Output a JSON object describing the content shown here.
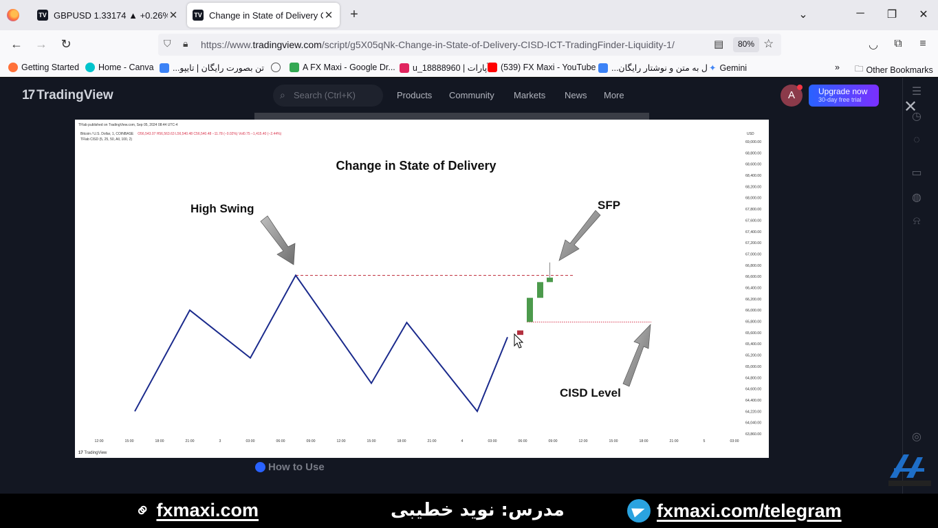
{
  "browser": {
    "tabs": [
      {
        "title": "GBPUSD 1.33174 ▲ +0.26% Uni",
        "active": false
      },
      {
        "title": "Change in State of Delivery CISD",
        "active": true
      }
    ],
    "url_prefix": "https://www.",
    "url_domain": "tradingview.com",
    "url_path": "/script/g5X05qNk-Change-in-State-of-Delivery-CISD-ICT-TradingFinder-Liquidity-1/",
    "zoom": "80%",
    "bookmarks": [
      {
        "label": "Getting Started",
        "color": "#ff7139"
      },
      {
        "label": "Home - Canva",
        "color": "#00c4cc"
      },
      {
        "label": "...تن بصورت رایگان | تایپو",
        "color": "#3b82f6"
      },
      {
        "label": "",
        "color": "#555555"
      },
      {
        "label": "A FX Maxi - Google Dr...",
        "color": "#34a853"
      },
      {
        "label": "u_18888960 | آپارات",
        "color": "#e0245e"
      },
      {
        "label": "(539) FX Maxi - YouTube",
        "color": "#ff0000"
      },
      {
        "label": "...ل به متن و نوشتار رایگان",
        "color": "#3b82f6"
      },
      {
        "label": "Gemini",
        "color": "#4285f4"
      }
    ],
    "other_bookmarks": "Other Bookmarks"
  },
  "tradingview": {
    "logo_text": "TradingView",
    "search_placeholder": "Search (Ctrl+K)",
    "nav": [
      "Products",
      "Community",
      "Markets",
      "News",
      "More"
    ],
    "avatar_letter": "A",
    "upgrade_line1": "Upgrade now",
    "upgrade_line2": "30-day free trial",
    "how_to_use": "How to Use"
  },
  "chart": {
    "published": "TFlab published on TradingView.com, Sep 05, 2024 08:44 UTC-4",
    "symbol_line": "Bitcoin / U.S. Dollar, 1, COINBASE",
    "ohlc": "O56,543.07  H56,563.63  L56,540.48  C56,540.48  −11.78 (−0.02%)  Vol0.75  −1,415.40 (−2.44%)",
    "indicator_line": "TFlab CISD (5, 25, 50, All, 100, 2)",
    "currency": "USD",
    "title": "Change in State of Delivery",
    "annotations": {
      "high_swing": "High Swing",
      "sfp": "SFP",
      "cisd_level": "CISD Level"
    },
    "footer_logo": "TradingView"
  },
  "chart_data": {
    "type": "line",
    "title": "Change in State of Delivery",
    "y_ticks": [
      "69,000.00",
      "68,800.00",
      "68,600.00",
      "68,400.00",
      "68,200.00",
      "68,000.00",
      "67,800.00",
      "67,600.00",
      "67,400.00",
      "67,200.00",
      "67,000.00",
      "66,800.00",
      "66,600.00",
      "66,400.00",
      "66,200.00",
      "66,000.00",
      "65,800.00",
      "65,600.00",
      "65,400.00",
      "65,200.00",
      "65,000.00",
      "64,800.00",
      "64,600.00",
      "64,400.00",
      "64,220.00",
      "64,040.00",
      "63,860.00"
    ],
    "x_ticks": [
      "12:00",
      "15:00",
      "18:00",
      "21:00",
      "3",
      "03:00",
      "06:00",
      "09:00",
      "12:00",
      "15:00",
      "18:00",
      "21:00",
      "4",
      "03:00",
      "06:00",
      "09:00",
      "12:00",
      "15:00",
      "18:00",
      "21:00",
      "5",
      "03:00"
    ],
    "ylim": [
      63860,
      69000
    ],
    "zigzag": [
      {
        "x": "15:00",
        "y": 64220
      },
      {
        "x": "21:00",
        "y": 66000
      },
      {
        "x": "03:00",
        "y": 65150
      },
      {
        "x": "07:30",
        "y": 66620
      },
      {
        "x": "15:00",
        "y": 64700
      },
      {
        "x": "18:30",
        "y": 65780
      },
      {
        "x": "01:30",
        "y": 64220
      },
      {
        "x": "04:30",
        "y": 65520
      }
    ],
    "candles": [
      {
        "open": 65640,
        "close": 65560,
        "high": 65640,
        "low": 65560,
        "color": "#b3303f"
      },
      {
        "open": 65790,
        "close": 66220,
        "high": 66220,
        "low": 65790,
        "color": "#4c9a4c"
      },
      {
        "open": 66220,
        "close": 66500,
        "high": 66500,
        "low": 66220,
        "color": "#4c9a4c"
      },
      {
        "open": 66500,
        "close": 66580,
        "high": 66850,
        "low": 66500,
        "color": "#4c9a4c"
      }
    ],
    "high_swing_level": 66620,
    "cisd_level": 65790
  },
  "footer": {
    "site": "fxmaxi.com",
    "teacher": "مدرس: نوید خطیبی",
    "telegram": "fxmaxi.com/telegram"
  }
}
